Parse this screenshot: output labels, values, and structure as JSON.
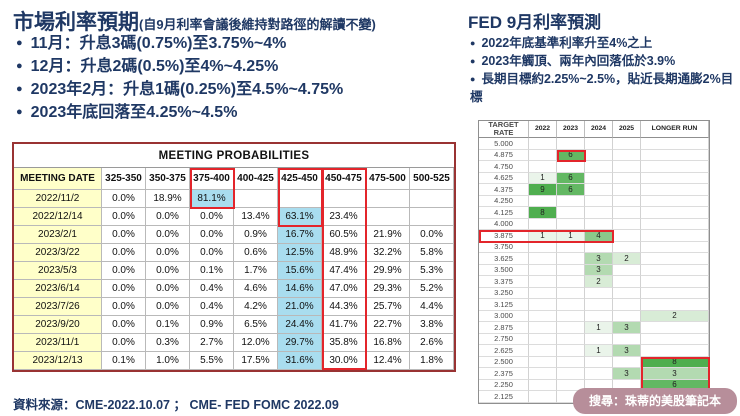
{
  "left": {
    "title": "市場利率預期",
    "subtitle": "(自9月利率會議後維持對路徑的解讀不變)",
    "bullets": [
      "11月：升息3碼(0.75%)至3.75%~4%",
      "12月：升息2碼(0.5%)至4%~4.25%",
      "2023年2月：升息1碼(0.25%)至4.5%~4.75%",
      "2023年底回落至4.25%~4.5%"
    ],
    "table": {
      "title": "MEETING PROBABILITIES",
      "columns": [
        "MEETING DATE",
        "325-350",
        "350-375",
        "375-400",
        "400-425",
        "425-450",
        "450-475",
        "475-500",
        "500-525"
      ],
      "rows": [
        {
          "date": "2022/11/2",
          "hl": 2,
          "values": [
            "0.0%",
            "18.9%",
            "81.1%",
            "",
            "",
            "",
            "",
            ""
          ]
        },
        {
          "date": "2022/12/14",
          "hl": 4,
          "values": [
            "0.0%",
            "0.0%",
            "0.0%",
            "13.4%",
            "63.1%",
            "23.4%",
            "",
            ""
          ]
        },
        {
          "date": "2023/2/1",
          "hl": 4,
          "values": [
            "0.0%",
            "0.0%",
            "0.0%",
            "0.9%",
            "16.7%",
            "60.5%",
            "21.9%",
            "0.0%"
          ]
        },
        {
          "date": "2023/3/22",
          "hl": 4,
          "values": [
            "0.0%",
            "0.0%",
            "0.0%",
            "0.6%",
            "12.5%",
            "48.9%",
            "32.2%",
            "5.8%"
          ]
        },
        {
          "date": "2023/5/3",
          "hl": 4,
          "values": [
            "0.0%",
            "0.0%",
            "0.1%",
            "1.7%",
            "15.6%",
            "47.4%",
            "29.9%",
            "5.3%"
          ]
        },
        {
          "date": "2023/6/14",
          "hl": 4,
          "values": [
            "0.0%",
            "0.0%",
            "0.4%",
            "4.6%",
            "14.6%",
            "47.0%",
            "29.3%",
            "5.2%"
          ]
        },
        {
          "date": "2023/7/26",
          "hl": 4,
          "values": [
            "0.0%",
            "0.0%",
            "0.4%",
            "4.2%",
            "21.0%",
            "44.3%",
            "25.7%",
            "4.4%"
          ]
        },
        {
          "date": "2023/9/20",
          "hl": 4,
          "values": [
            "0.0%",
            "0.1%",
            "0.9%",
            "6.5%",
            "24.4%",
            "41.7%",
            "22.7%",
            "3.8%"
          ]
        },
        {
          "date": "2023/11/1",
          "hl": 4,
          "values": [
            "0.0%",
            "0.3%",
            "2.7%",
            "12.0%",
            "29.7%",
            "35.8%",
            "16.8%",
            "2.6%"
          ]
        },
        {
          "date": "2023/12/13",
          "hl": 4,
          "values": [
            "0.1%",
            "1.0%",
            "5.5%",
            "17.5%",
            "31.6%",
            "30.0%",
            "12.4%",
            "1.8%"
          ]
        }
      ]
    },
    "source": "資料來源：CME-2022.10.07 ；  CME- FED FOMC 2022.09"
  },
  "right": {
    "title": "FED 9月利率預測",
    "bullets": [
      "2022年底基準利率升至4%之上",
      "2023年觸頂、兩年內回落低於3.9%",
      "長期目標約2.25%~2.5%，貼近長期通膨2%目標"
    ],
    "dot_table": {
      "columns": [
        "TARGET RATE",
        "2022",
        "2023",
        "2024",
        "2025",
        "LONGER RUN"
      ],
      "rows": [
        {
          "rate": "5.000",
          "counts": [
            "",
            "",
            "",
            "",
            ""
          ]
        },
        {
          "rate": "4.875",
          "counts": [
            "",
            "6",
            "",
            "",
            ""
          ]
        },
        {
          "rate": "4.750",
          "counts": [
            "",
            "",
            "",
            "",
            ""
          ]
        },
        {
          "rate": "4.625",
          "counts": [
            "1",
            "6",
            "",
            "",
            ""
          ]
        },
        {
          "rate": "4.375",
          "counts": [
            "9",
            "6",
            "",
            "",
            ""
          ]
        },
        {
          "rate": "4.250",
          "counts": [
            "",
            "",
            "",
            "",
            ""
          ]
        },
        {
          "rate": "4.125",
          "counts": [
            "8",
            "",
            "",
            "",
            ""
          ]
        },
        {
          "rate": "4.000",
          "counts": [
            "",
            "",
            "",
            "",
            ""
          ]
        },
        {
          "rate": "3.875",
          "counts": [
            "1",
            "1",
            "4",
            "",
            ""
          ]
        },
        {
          "rate": "3.750",
          "counts": [
            "",
            "",
            "",
            "",
            ""
          ]
        },
        {
          "rate": "3.625",
          "counts": [
            "",
            "",
            "3",
            "2",
            ""
          ]
        },
        {
          "rate": "3.500",
          "counts": [
            "",
            "",
            "3",
            "",
            ""
          ]
        },
        {
          "rate": "3.375",
          "counts": [
            "",
            "",
            "2",
            "",
            ""
          ]
        },
        {
          "rate": "3.250",
          "counts": [
            "",
            "",
            "",
            "",
            ""
          ]
        },
        {
          "rate": "3.125",
          "counts": [
            "",
            "",
            "",
            "",
            ""
          ]
        },
        {
          "rate": "3.000",
          "counts": [
            "",
            "",
            "",
            "",
            "2"
          ]
        },
        {
          "rate": "2.875",
          "counts": [
            "",
            "",
            "1",
            "3",
            ""
          ]
        },
        {
          "rate": "2.750",
          "counts": [
            "",
            "",
            "",
            "",
            ""
          ]
        },
        {
          "rate": "2.625",
          "counts": [
            "",
            "",
            "1",
            "3",
            ""
          ]
        },
        {
          "rate": "2.500",
          "counts": [
            "",
            "",
            "",
            "",
            "8"
          ]
        },
        {
          "rate": "2.375",
          "counts": [
            "",
            "",
            "",
            "3",
            "3"
          ]
        },
        {
          "rate": "2.250",
          "counts": [
            "",
            "",
            "",
            "",
            "6"
          ]
        },
        {
          "rate": "2.125",
          "counts": [
            "",
            "",
            "",
            "",
            ""
          ]
        }
      ]
    }
  },
  "badge": "搜尋：珠蒂的美股筆記本",
  "colors": {
    "navy_text": "#1f3864",
    "cyan_highlight": "#a9ddef",
    "red_box": "#e3252b",
    "table_frame": "#993333",
    "date_col_bg": "#ffffc9",
    "green_dark": "#4fae4f",
    "badge_bg": "#b78e9a"
  }
}
